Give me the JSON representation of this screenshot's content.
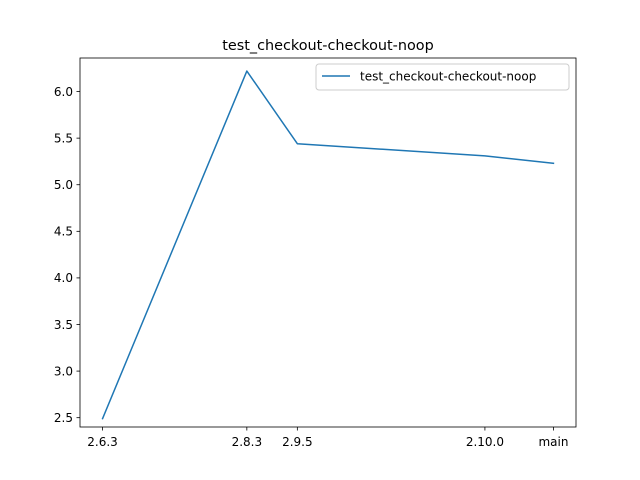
{
  "chart_data": {
    "type": "line",
    "title": "test_checkout-checkout-noop",
    "xlabel": "",
    "ylabel": "",
    "categories": [
      "2.6.3",
      "2.8.3",
      "2.9.5",
      "2.10.0",
      "main"
    ],
    "x": [
      0,
      2,
      2.7,
      5.3,
      6.25
    ],
    "series": [
      {
        "name": "test_checkout-checkout-noop",
        "values": [
          2.49,
          6.22,
          5.44,
          5.31,
          5.23
        ],
        "color": "#1f77b4"
      }
    ],
    "yticks": [
      2.5,
      3.0,
      3.5,
      4.0,
      4.5,
      5.0,
      5.5,
      6.0
    ],
    "ytick_labels": [
      "2.5",
      "3.0",
      "3.5",
      "4.0",
      "4.5",
      "5.0",
      "5.5",
      "6.0"
    ],
    "ylim": [
      2.4,
      6.36
    ],
    "grid": false,
    "legend_position": "top-right"
  }
}
